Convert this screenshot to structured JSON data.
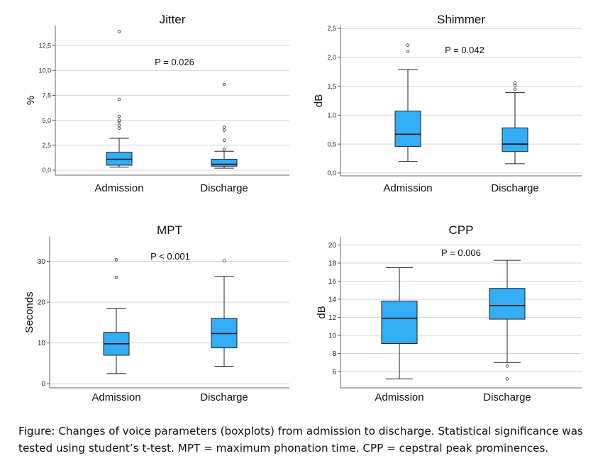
{
  "chart_data": [
    {
      "type": "box",
      "title": "Jitter",
      "ylabel": "%",
      "annotation": "P = 0.026",
      "categories": [
        "Admission",
        "Discharge"
      ],
      "ylim": [
        -0.5,
        14.5
      ],
      "yticks": [
        0.0,
        2.5,
        5.0,
        7.5,
        10.0,
        12.5
      ],
      "ytick_labels": [
        "0,0",
        "2,5",
        "5,0",
        "7,5",
        "10,0",
        "12,5"
      ],
      "boxes": [
        {
          "min": 0.3,
          "q1": 0.5,
          "median": 1.1,
          "q3": 1.8,
          "max": 3.2,
          "outliers": [
            4.2,
            4.5,
            4.9,
            5.0,
            5.4,
            7.1,
            13.9
          ]
        },
        {
          "min": 0.2,
          "q1": 0.4,
          "median": 0.6,
          "q3": 1.1,
          "max": 1.9,
          "outliers": [
            2.1,
            3.0,
            4.0,
            4.3,
            8.6
          ]
        }
      ],
      "grid": "horizontal",
      "color": "#33adf5"
    },
    {
      "type": "box",
      "title": "Shimmer",
      "ylabel": "dB",
      "annotation": "P = 0.042",
      "categories": [
        "Admission",
        "Discharge"
      ],
      "ylim": [
        -0.05,
        2.55
      ],
      "yticks": [
        0.0,
        0.5,
        1.0,
        1.5,
        2.0,
        2.5
      ],
      "ytick_labels": [
        "0,0",
        "0,5",
        "1,0",
        "1,5",
        "2,0",
        "2,5"
      ],
      "boxes": [
        {
          "min": 0.2,
          "q1": 0.46,
          "median": 0.67,
          "q3": 1.07,
          "max": 1.79,
          "outliers": [
            2.1,
            2.21
          ]
        },
        {
          "min": 0.16,
          "q1": 0.37,
          "median": 0.5,
          "q3": 0.78,
          "max": 1.39,
          "outliers": [
            1.45,
            1.51,
            1.56
          ]
        }
      ],
      "grid": "horizontal",
      "color": "#33adf5"
    },
    {
      "type": "box",
      "title": "MPT",
      "ylabel": "Seconds",
      "annotation": "P < 0.001",
      "categories": [
        "Admission",
        "Discharge"
      ],
      "ylim": [
        -1,
        36
      ],
      "yticks": [
        0,
        10,
        20,
        30
      ],
      "ytick_labels": [
        "0",
        "10",
        "20",
        "30"
      ],
      "boxes": [
        {
          "min": 2.5,
          "q1": 7.0,
          "median": 9.8,
          "q3": 12.6,
          "max": 18.4,
          "outliers": [
            26.1,
            30.4
          ]
        },
        {
          "min": 4.3,
          "q1": 8.8,
          "median": 12.3,
          "q3": 16.0,
          "max": 26.3,
          "outliers": [
            30.1
          ]
        }
      ],
      "grid": "horizontal",
      "color": "#33adf5"
    },
    {
      "type": "box",
      "title": "CPP",
      "ylabel": "dB",
      "annotation": "P = 0.006",
      "categories": [
        "Admission",
        "Discharge"
      ],
      "ylim": [
        4.2,
        20.9
      ],
      "yticks": [
        6,
        8,
        10,
        12,
        14,
        16,
        18,
        20
      ],
      "ytick_labels": [
        "6",
        "8",
        "10",
        "12",
        "14",
        "16",
        "18",
        "20"
      ],
      "boxes": [
        {
          "min": 5.2,
          "q1": 9.1,
          "median": 11.9,
          "q3": 13.8,
          "max": 17.5,
          "outliers": []
        },
        {
          "min": 7.0,
          "q1": 11.8,
          "median": 13.3,
          "q3": 15.2,
          "max": 18.3,
          "outliers": [
            6.6,
            5.2
          ]
        }
      ],
      "grid": "horizontal",
      "color": "#33adf5"
    }
  ],
  "caption": "Figure: Changes of voice parameters (boxplots) from admission to discharge. Statistical significance was tested using student’s t-test. MPT = maximum phonation time. CPP = cepstral peak prominences."
}
